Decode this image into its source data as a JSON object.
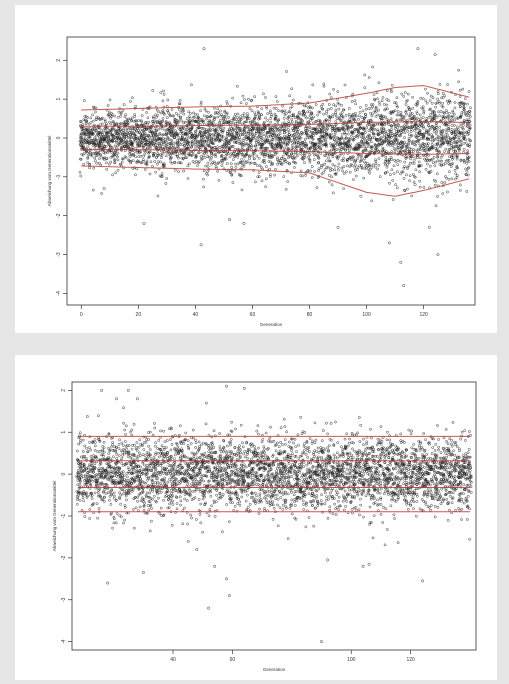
{
  "colors": {
    "background": "#e6e6e7",
    "panel": "#ffffff",
    "points": "#222222",
    "reference_lines": "#c0392b"
  },
  "chart_data": [
    {
      "type": "scatter",
      "xlabel": "Generation",
      "ylabel": "Abweichung vom Generationsmittel",
      "xlim": [
        -5,
        138
      ],
      "ylim": [
        -4.3,
        2.6
      ],
      "x_ticks": [
        0,
        20,
        40,
        60,
        80,
        100,
        120
      ],
      "y_ticks": [
        2,
        1,
        0,
        -1,
        -2,
        -3,
        -4
      ],
      "grid": false,
      "points_per_generation": 30,
      "spread_sd": [
        0.32,
        0.38,
        0.4,
        0.42,
        0.48,
        0.5,
        0.55,
        0.6
      ],
      "spread_sd_at_x": [
        0,
        20,
        40,
        60,
        80,
        100,
        120,
        136
      ],
      "outliers": [
        [
          43,
          2.3
        ],
        [
          118,
          2.3
        ],
        [
          124,
          2.15
        ],
        [
          22,
          -2.2
        ],
        [
          8,
          -1.3
        ],
        [
          52,
          -2.1
        ],
        [
          57,
          -2.2
        ],
        [
          90,
          -2.3
        ],
        [
          98,
          -1.5
        ],
        [
          108,
          -2.7
        ],
        [
          112,
          -3.2
        ],
        [
          113,
          -3.8
        ],
        [
          122,
          -2.3
        ],
        [
          125,
          -3.0
        ],
        [
          117,
          -1.2
        ],
        [
          42,
          -2.75
        ]
      ],
      "reference_lines": [
        {
          "x": [
            0,
            20,
            40,
            60,
            80,
            100,
            110,
            120,
            136
          ],
          "y": [
            0.72,
            0.76,
            0.8,
            0.82,
            0.9,
            1.15,
            1.3,
            1.35,
            1.05
          ]
        },
        {
          "x": [
            0,
            20,
            40,
            60,
            80,
            100,
            120,
            136
          ],
          "y": [
            0.3,
            0.3,
            0.32,
            0.33,
            0.35,
            0.4,
            0.42,
            0.4
          ]
        },
        {
          "x": [
            0,
            20,
            40,
            60,
            80,
            100,
            120,
            136
          ],
          "y": [
            -0.3,
            -0.3,
            -0.32,
            -0.33,
            -0.35,
            -0.4,
            -0.42,
            -0.4
          ]
        },
        {
          "x": [
            0,
            20,
            40,
            60,
            80,
            90,
            100,
            110,
            120,
            136
          ],
          "y": [
            -0.72,
            -0.76,
            -0.8,
            -0.82,
            -0.9,
            -1.15,
            -1.4,
            -1.5,
            -1.35,
            -1.05
          ]
        }
      ]
    },
    {
      "type": "scatter",
      "xlabel": "Generation",
      "ylabel": "Abweichung vom Generationsmittel",
      "xlim": [
        6,
        142
      ],
      "ylim": [
        -4.2,
        2.2
      ],
      "x_ticks": [
        40,
        60,
        100,
        120
      ],
      "y_ticks": [
        2,
        1,
        0,
        -1,
        -2,
        -3,
        -4
      ],
      "grid": false,
      "points_per_generation": 30,
      "spread_sd": [
        0.45,
        0.45
      ],
      "spread_sd_at_x": [
        8,
        140
      ],
      "outliers": [
        [
          16,
          2.0
        ],
        [
          21,
          1.8
        ],
        [
          25,
          2.0
        ],
        [
          28,
          1.8
        ],
        [
          58,
          2.1
        ],
        [
          64,
          2.05
        ],
        [
          52,
          -3.2
        ],
        [
          58,
          -2.5
        ],
        [
          59,
          -2.9
        ],
        [
          54,
          -2.2
        ],
        [
          90,
          -4.0
        ],
        [
          104,
          -2.2
        ],
        [
          106,
          -2.15
        ],
        [
          124,
          -2.55
        ],
        [
          18,
          -2.6
        ],
        [
          30,
          -2.35
        ],
        [
          48,
          -1.8
        ],
        [
          92,
          -2.05
        ]
      ],
      "reference_lines": [
        {
          "x": [
            8,
            140
          ],
          "y": [
            0.9,
            0.9
          ]
        },
        {
          "x": [
            8,
            140
          ],
          "y": [
            0.32,
            0.32
          ]
        },
        {
          "x": [
            8,
            140
          ],
          "y": [
            -0.32,
            -0.32
          ]
        },
        {
          "x": [
            8,
            140
          ],
          "y": [
            -0.9,
            -0.9
          ]
        }
      ]
    }
  ]
}
